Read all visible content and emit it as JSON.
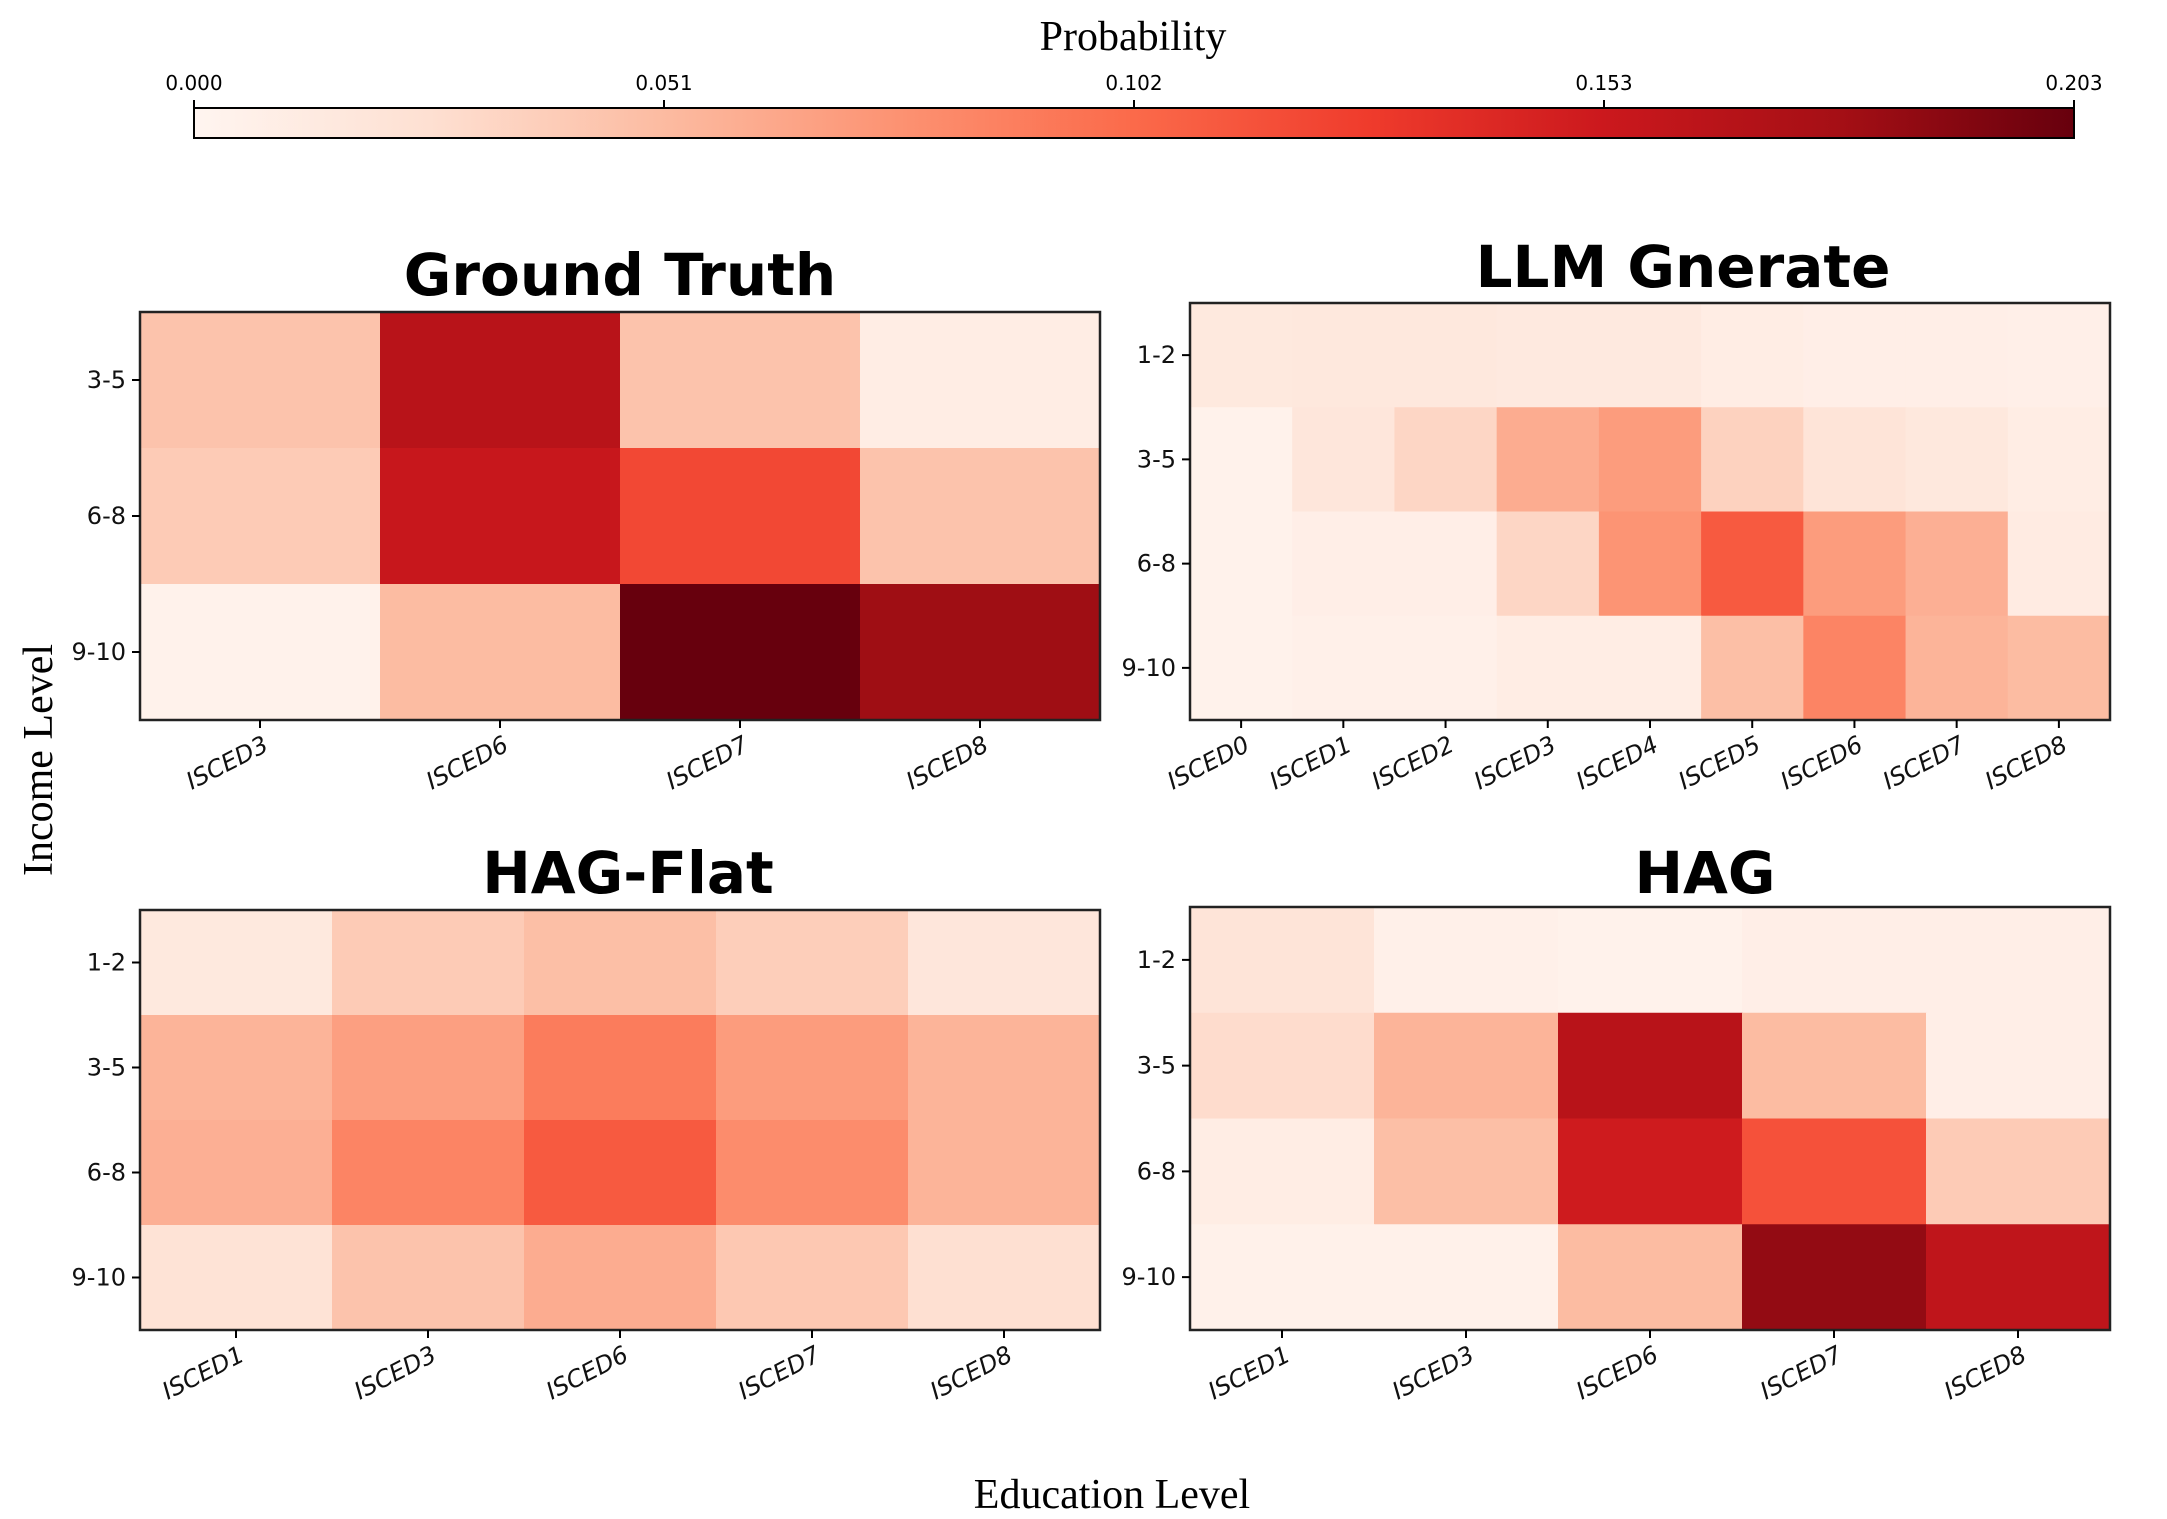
{
  "figure": {
    "colorbar_label": "Probability",
    "colorbar_ticks": [
      "0.000",
      "0.051",
      "0.102",
      "0.153",
      "0.203"
    ],
    "colorbar_range": [
      0.0,
      0.203
    ],
    "colormap": "Reds",
    "y_label": "Income Level",
    "x_label": "Education Level",
    "colors": {
      "low": "#fff5f0",
      "high": "#67000d"
    }
  },
  "chart_data": [
    {
      "type": "heatmap",
      "title": "Ground Truth",
      "xlabel": "Education Level",
      "ylabel": "Income Level",
      "x": [
        "ISCED3",
        "ISCED6",
        "ISCED7",
        "ISCED8"
      ],
      "y": [
        "3-5",
        "6-8",
        "9-10"
      ],
      "values": [
        [
          0.045,
          0.165,
          0.045,
          0.01
        ],
        [
          0.04,
          0.155,
          0.12,
          0.045
        ],
        [
          0.004,
          0.05,
          0.203,
          0.18
        ]
      ]
    },
    {
      "type": "heatmap",
      "title": "LLM Gnerate",
      "xlabel": "Education Level",
      "ylabel": "Income Level",
      "x": [
        "ISCED0",
        "ISCED1",
        "ISCED2",
        "ISCED3",
        "ISCED4",
        "ISCED5",
        "ISCED6",
        "ISCED7",
        "ISCED8"
      ],
      "y": [
        "1-2",
        "3-5",
        "6-8",
        "9-10"
      ],
      "values": [
        [
          0.015,
          0.016,
          0.016,
          0.014,
          0.014,
          0.01,
          0.008,
          0.008,
          0.007
        ],
        [
          0.004,
          0.018,
          0.032,
          0.06,
          0.07,
          0.035,
          0.02,
          0.016,
          0.01
        ],
        [
          0.004,
          0.008,
          0.008,
          0.032,
          0.075,
          0.11,
          0.07,
          0.058,
          0.012
        ],
        [
          0.004,
          0.006,
          0.006,
          0.01,
          0.01,
          0.048,
          0.085,
          0.055,
          0.05
        ]
      ]
    },
    {
      "type": "heatmap",
      "title": "HAG-Flat",
      "xlabel": "Education Level",
      "ylabel": "Income Level",
      "x": [
        "ISCED1",
        "ISCED3",
        "ISCED6",
        "ISCED7",
        "ISCED8"
      ],
      "y": [
        "1-2",
        "3-5",
        "6-8",
        "9-10"
      ],
      "values": [
        [
          0.015,
          0.04,
          0.048,
          0.038,
          0.018
        ],
        [
          0.055,
          0.068,
          0.09,
          0.07,
          0.055
        ],
        [
          0.058,
          0.085,
          0.11,
          0.08,
          0.055
        ],
        [
          0.022,
          0.045,
          0.06,
          0.042,
          0.025
        ]
      ]
    },
    {
      "type": "heatmap",
      "title": "HAG",
      "xlabel": "Education Level",
      "ylabel": "Income Level",
      "x": [
        "ISCED1",
        "ISCED3",
        "ISCED6",
        "ISCED7",
        "ISCED8"
      ],
      "y": [
        "1-2",
        "3-5",
        "6-8",
        "9-10"
      ],
      "values": [
        [
          0.02,
          0.006,
          0.004,
          0.008,
          0.008
        ],
        [
          0.028,
          0.055,
          0.165,
          0.05,
          0.008
        ],
        [
          0.01,
          0.048,
          0.15,
          0.115,
          0.04
        ],
        [
          0.005,
          0.005,
          0.05,
          0.185,
          0.16
        ]
      ]
    }
  ]
}
